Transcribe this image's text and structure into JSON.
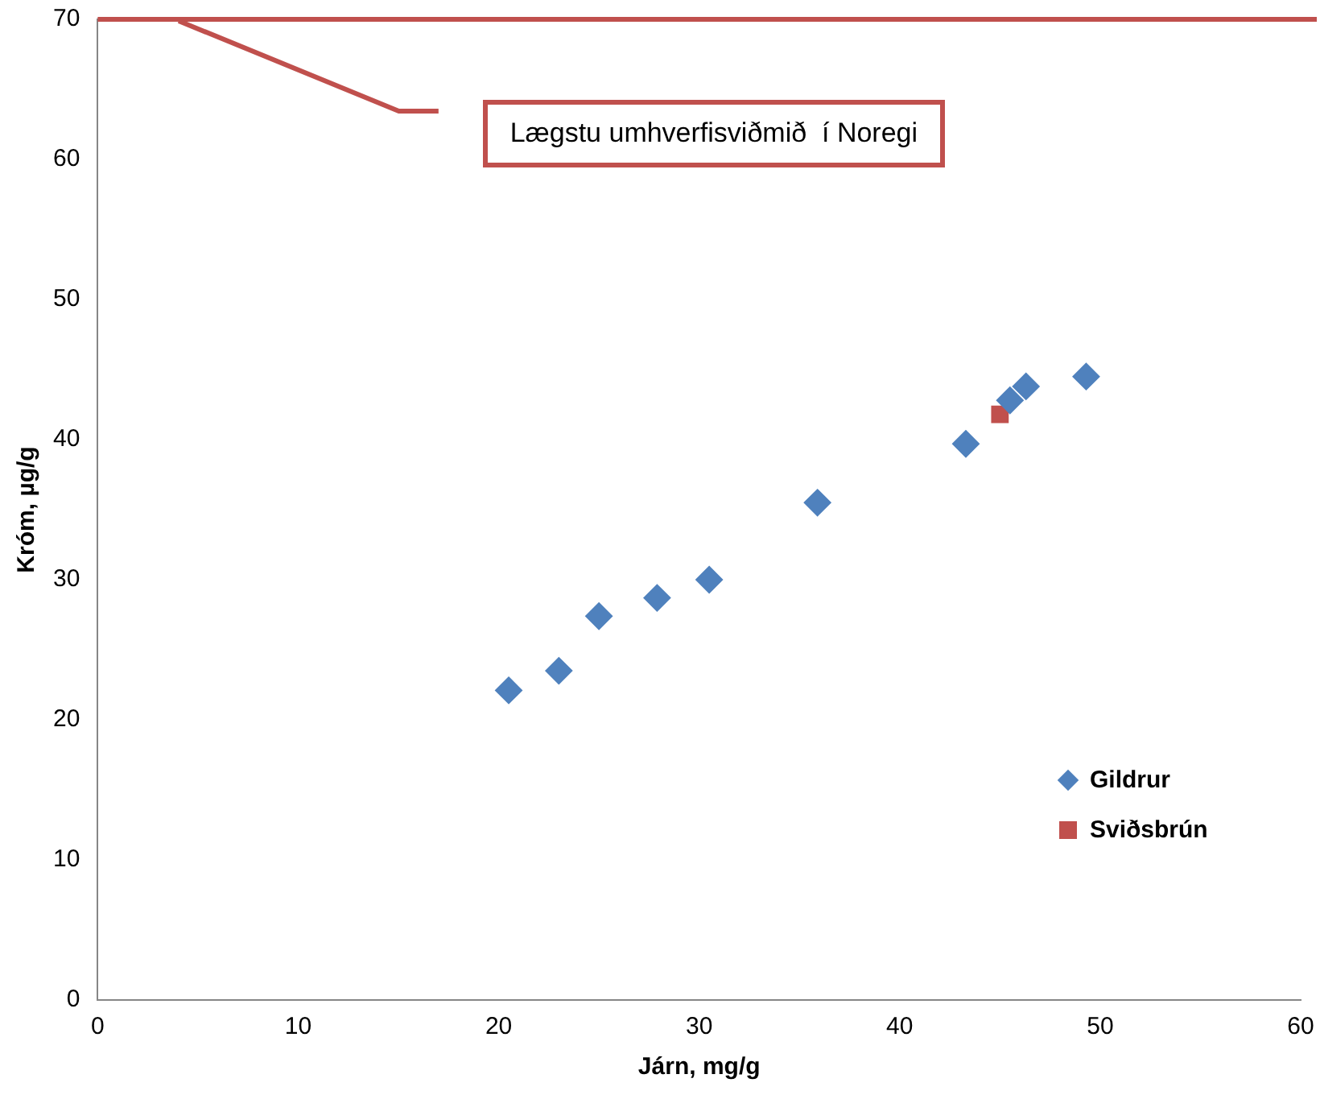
{
  "chart_data": {
    "type": "scatter",
    "xlabel": "Járn, mg/g",
    "ylabel": "Króm, µg/g",
    "xlim": [
      0,
      60
    ],
    "xticks": [
      0,
      10,
      20,
      30,
      40,
      50,
      60
    ],
    "ylim": [
      0,
      70
    ],
    "yticks": [
      0,
      10,
      20,
      30,
      40,
      50,
      60,
      70
    ],
    "grid": false,
    "legend": "right",
    "series": [
      {
        "name": "Gildrur",
        "color": "#4f81bd",
        "marker": "diamond",
        "x": [
          20.5,
          23.0,
          25.0,
          27.9,
          30.5,
          35.9,
          43.3,
          45.5,
          46.3,
          49.3
        ],
        "values": [
          22.1,
          23.5,
          27.4,
          28.7,
          30.0,
          35.5,
          39.7,
          42.8,
          43.8,
          44.5
        ]
      },
      {
        "name": "Sviðsbrún",
        "color": "#c0504d",
        "marker": "square",
        "x": [
          45.0
        ],
        "values": [
          41.8
        ]
      }
    ],
    "ref_lines": [
      {
        "axis": "y",
        "value": 70,
        "color": "#c0504d"
      }
    ],
    "annotations": [
      "Lægstu umhverfisviðmið  í Noregi"
    ]
  }
}
